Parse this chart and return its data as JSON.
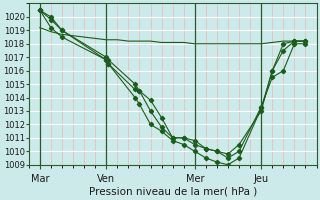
{
  "background_color": "#cceaea",
  "grid_color_h": "#ffffff",
  "grid_color_v": "#e8b8b8",
  "line_color": "#1a5c1a",
  "xlabel": "Pression niveau de la mer( hPa )",
  "ylim": [
    1009,
    1021
  ],
  "ytick_min": 1009,
  "ytick_max": 1020,
  "xtick_labels": [
    "Mar",
    "Ven",
    "Mer",
    "Jeu"
  ],
  "xtick_positions": [
    0.5,
    3.5,
    7.5,
    10.5
  ],
  "xlim": [
    0,
    13
  ],
  "series": [
    {
      "x": [
        0.5,
        1.0,
        1.5,
        3.5,
        3.6,
        4.8,
        5.0,
        5.5,
        6.0,
        6.5,
        7.0,
        7.5,
        8.0,
        8.5,
        9.0,
        9.5,
        10.5,
        11.0,
        11.5,
        12.0,
        12.5
      ],
      "y": [
        1020.5,
        1020.0,
        1019.0,
        1017.0,
        1016.8,
        1015.0,
        1014.5,
        1013.8,
        1012.5,
        1011.0,
        1011.0,
        1010.5,
        1010.2,
        1010.0,
        1009.5,
        1010.0,
        1013.3,
        1015.5,
        1016.0,
        1018.0,
        1018.0
      ],
      "markers": true
    },
    {
      "x": [
        0.5,
        1.0,
        1.5,
        3.5,
        3.6,
        4.8,
        5.0,
        5.5,
        6.0,
        6.5,
        7.0,
        7.5,
        8.0,
        8.5,
        9.0,
        9.5,
        10.5,
        11.0,
        11.5,
        12.0,
        12.5
      ],
      "y": [
        1020.5,
        1019.8,
        1019.0,
        1016.8,
        1016.5,
        1014.6,
        1014.5,
        1013.0,
        1011.8,
        1011.0,
        1011.0,
        1010.8,
        1010.2,
        1010.0,
        1009.8,
        1010.5,
        1013.0,
        1016.0,
        1017.5,
        1018.2,
        1018.2
      ],
      "markers": true
    },
    {
      "x": [
        0.5,
        1.0,
        1.5,
        3.5,
        3.6,
        4.8,
        5.0,
        5.5,
        6.0,
        6.5,
        7.0,
        7.5,
        8.0,
        8.5,
        9.0,
        9.5,
        10.5,
        11.0,
        11.5,
        12.0,
        12.5
      ],
      "y": [
        1020.5,
        1019.2,
        1018.5,
        1016.8,
        1016.5,
        1014.0,
        1013.5,
        1012.0,
        1011.5,
        1010.8,
        1010.5,
        1010.0,
        1009.5,
        1009.2,
        1009.0,
        1009.5,
        1013.2,
        1016.0,
        1018.0,
        1018.2,
        1018.2
      ],
      "markers": true
    },
    {
      "x": [
        0.5,
        1.0,
        1.5,
        2.0,
        2.5,
        3.0,
        3.5,
        4.0,
        4.5,
        5.0,
        5.5,
        6.0,
        6.5,
        7.0,
        7.5,
        8.0,
        8.5,
        9.0,
        9.5,
        10.0,
        10.5,
        11.0,
        11.5,
        12.0,
        12.5
      ],
      "y": [
        1019.2,
        1018.9,
        1018.7,
        1018.6,
        1018.5,
        1018.4,
        1018.3,
        1018.3,
        1018.2,
        1018.2,
        1018.2,
        1018.1,
        1018.1,
        1018.1,
        1018.0,
        1018.0,
        1018.0,
        1018.0,
        1018.0,
        1018.0,
        1018.0,
        1018.1,
        1018.2,
        1018.2,
        1018.2
      ],
      "markers": false
    }
  ]
}
